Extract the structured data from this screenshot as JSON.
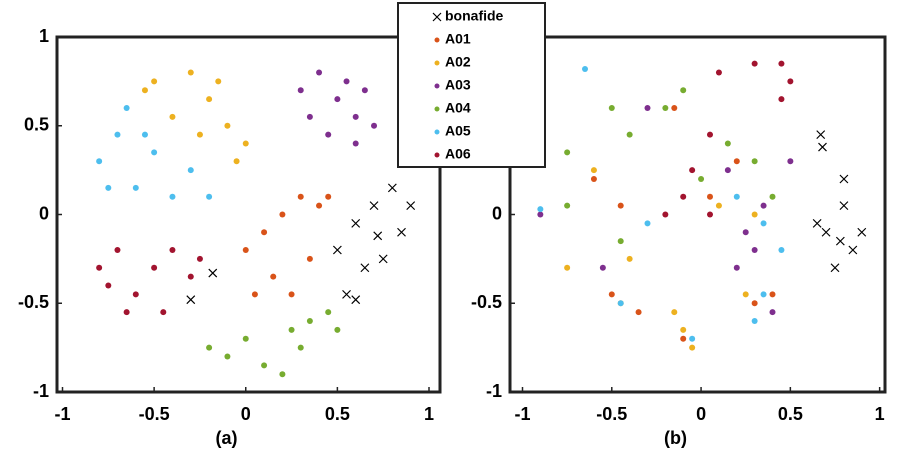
{
  "chart_data": [
    {
      "type": "scatter",
      "xlabel": "(a)",
      "xlim": [
        -1.03,
        1.06
      ],
      "ylim": [
        -1,
        1
      ],
      "xticks": [
        -1,
        -0.5,
        0,
        0.5,
        1
      ],
      "yticks": [
        -1,
        -0.5,
        0,
        0.5,
        1
      ],
      "legend": "top",
      "series": [
        {
          "name": "bonafide",
          "color": "#000000",
          "marker": "x",
          "x": [
            0.6,
            0.7,
            0.8,
            0.85,
            0.75,
            0.65,
            0.9,
            0.72,
            0.55,
            0.6,
            -0.3,
            -0.18,
            0.5
          ],
          "y": [
            -0.05,
            0.05,
            0.15,
            -0.1,
            -0.25,
            -0.3,
            0.05,
            -0.12,
            -0.45,
            -0.48,
            -0.48,
            -0.33,
            -0.2
          ]
        },
        {
          "name": "A01",
          "color": "#d95319",
          "marker": "o",
          "x": [
            0,
            0.1,
            0.2,
            0.3,
            0.4,
            0.15,
            0.25,
            0.05,
            0.35,
            0.45
          ],
          "y": [
            -0.2,
            -0.1,
            0,
            0.1,
            0.05,
            -0.35,
            -0.45,
            -0.45,
            -0.25,
            0.1
          ]
        },
        {
          "name": "A02",
          "color": "#edb120",
          "marker": "o",
          "x": [
            -0.5,
            -0.3,
            -0.2,
            -0.1,
            -0.05,
            -0.4,
            -0.55,
            -0.15,
            0,
            -0.25
          ],
          "y": [
            0.75,
            0.8,
            0.65,
            0.5,
            0.3,
            0.55,
            0.7,
            0.75,
            0.4,
            0.45
          ]
        },
        {
          "name": "A03",
          "color": "#7e2f8e",
          "marker": "o",
          "x": [
            0.3,
            0.4,
            0.55,
            0.6,
            0.45,
            0.7,
            0.35,
            0.5,
            0.6,
            0.65
          ],
          "y": [
            0.7,
            0.8,
            0.75,
            0.55,
            0.45,
            0.5,
            0.55,
            0.65,
            0.4,
            0.7
          ]
        },
        {
          "name": "A04",
          "color": "#77ac30",
          "marker": "o",
          "x": [
            -0.2,
            -0.1,
            0,
            0.1,
            0.25,
            0.35,
            0.45,
            0.2,
            0.3,
            0.5
          ],
          "y": [
            -0.75,
            -0.8,
            -0.7,
            -0.85,
            -0.65,
            -0.6,
            -0.55,
            -0.9,
            -0.75,
            -0.65
          ]
        },
        {
          "name": "A05",
          "color": "#4dbeee",
          "marker": "o",
          "x": [
            -0.8,
            -0.7,
            -0.6,
            -0.5,
            -0.4,
            -0.3,
            -0.75,
            -0.55,
            -0.2,
            -0.65
          ],
          "y": [
            0.3,
            0.45,
            0.15,
            0.35,
            0.1,
            0.25,
            0.15,
            0.45,
            0.1,
            0.6
          ]
        },
        {
          "name": "A06",
          "color": "#a2142f",
          "marker": "o",
          "x": [
            -0.8,
            -0.7,
            -0.6,
            -0.5,
            -0.4,
            -0.3,
            -0.65,
            -0.45,
            -0.25,
            -0.75
          ],
          "y": [
            -0.3,
            -0.2,
            -0.45,
            -0.3,
            -0.2,
            -0.35,
            -0.55,
            -0.55,
            -0.25,
            -0.4
          ]
        }
      ]
    },
    {
      "type": "scatter",
      "xlabel": "(b)",
      "xlim": [
        -1.07,
        1.03
      ],
      "ylim": [
        -1,
        1
      ],
      "xticks": [
        -1,
        -0.5,
        0,
        0.5,
        1
      ],
      "yticks": [
        -1,
        -0.5,
        0,
        0.5,
        1
      ],
      "series": [
        {
          "color": "#000000",
          "marker": "x",
          "x": [
            0.7,
            0.8,
            0.85,
            0.75,
            0.8,
            0.65,
            0.9,
            0.78,
            0.67,
            0.68
          ],
          "y": [
            -0.1,
            0.05,
            -0.2,
            -0.3,
            0.2,
            -0.05,
            -0.1,
            -0.15,
            0.45,
            0.38
          ]
        },
        {
          "color": "#d95319",
          "marker": "o",
          "x": [
            -0.5,
            -0.1,
            0.2,
            -0.45,
            0.3,
            -0.6,
            0.05,
            -0.15,
            0.4,
            -0.35
          ],
          "y": [
            -0.45,
            -0.7,
            0.3,
            0.05,
            -0.5,
            0.2,
            0.1,
            0.6,
            -0.45,
            -0.55
          ]
        },
        {
          "color": "#edb120",
          "marker": "o",
          "x": [
            -0.1,
            -0.05,
            -0.15,
            0.25,
            -0.45,
            0.1,
            -0.75,
            -0.4,
            0.3,
            -0.6
          ],
          "y": [
            -0.65,
            -0.75,
            -0.55,
            -0.45,
            -0.5,
            0.05,
            -0.3,
            -0.25,
            0,
            0.25
          ]
        },
        {
          "color": "#7e2f8e",
          "marker": "o",
          "x": [
            0.25,
            0.35,
            0.4,
            0.15,
            0.3,
            -0.9,
            -0.3,
            0.5,
            0.2,
            -0.55
          ],
          "y": [
            -0.1,
            0.05,
            -0.55,
            0.25,
            -0.2,
            0,
            0.6,
            0.3,
            -0.3,
            -0.3
          ]
        },
        {
          "color": "#77ac30",
          "marker": "o",
          "x": [
            -0.5,
            -0.2,
            -0.4,
            -0.75,
            -0.45,
            -0.75,
            0.15,
            0.3,
            0,
            -0.1,
            0.4
          ],
          "y": [
            0.6,
            0.6,
            0.45,
            0.35,
            -0.15,
            0.05,
            0.4,
            0.3,
            0.2,
            0.7,
            0.1
          ]
        },
        {
          "color": "#4dbeee",
          "marker": "o",
          "x": [
            -0.45,
            -0.05,
            0.3,
            0.35,
            0.2,
            0.35,
            -0.65,
            -0.3,
            0.45,
            -0.9
          ],
          "y": [
            -0.5,
            -0.7,
            -0.6,
            -0.45,
            0.1,
            -0.05,
            0.82,
            -0.05,
            -0.2,
            0.03
          ]
        },
        {
          "color": "#a2142f",
          "marker": "o",
          "x": [
            0.1,
            0.3,
            0.5,
            0.45,
            0.05,
            -0.1,
            -0.05,
            0.05,
            0.45,
            -0.2
          ],
          "y": [
            0.8,
            0.85,
            0.75,
            0.85,
            0,
            0.1,
            0.25,
            0.45,
            0.65,
            0
          ]
        }
      ]
    }
  ]
}
